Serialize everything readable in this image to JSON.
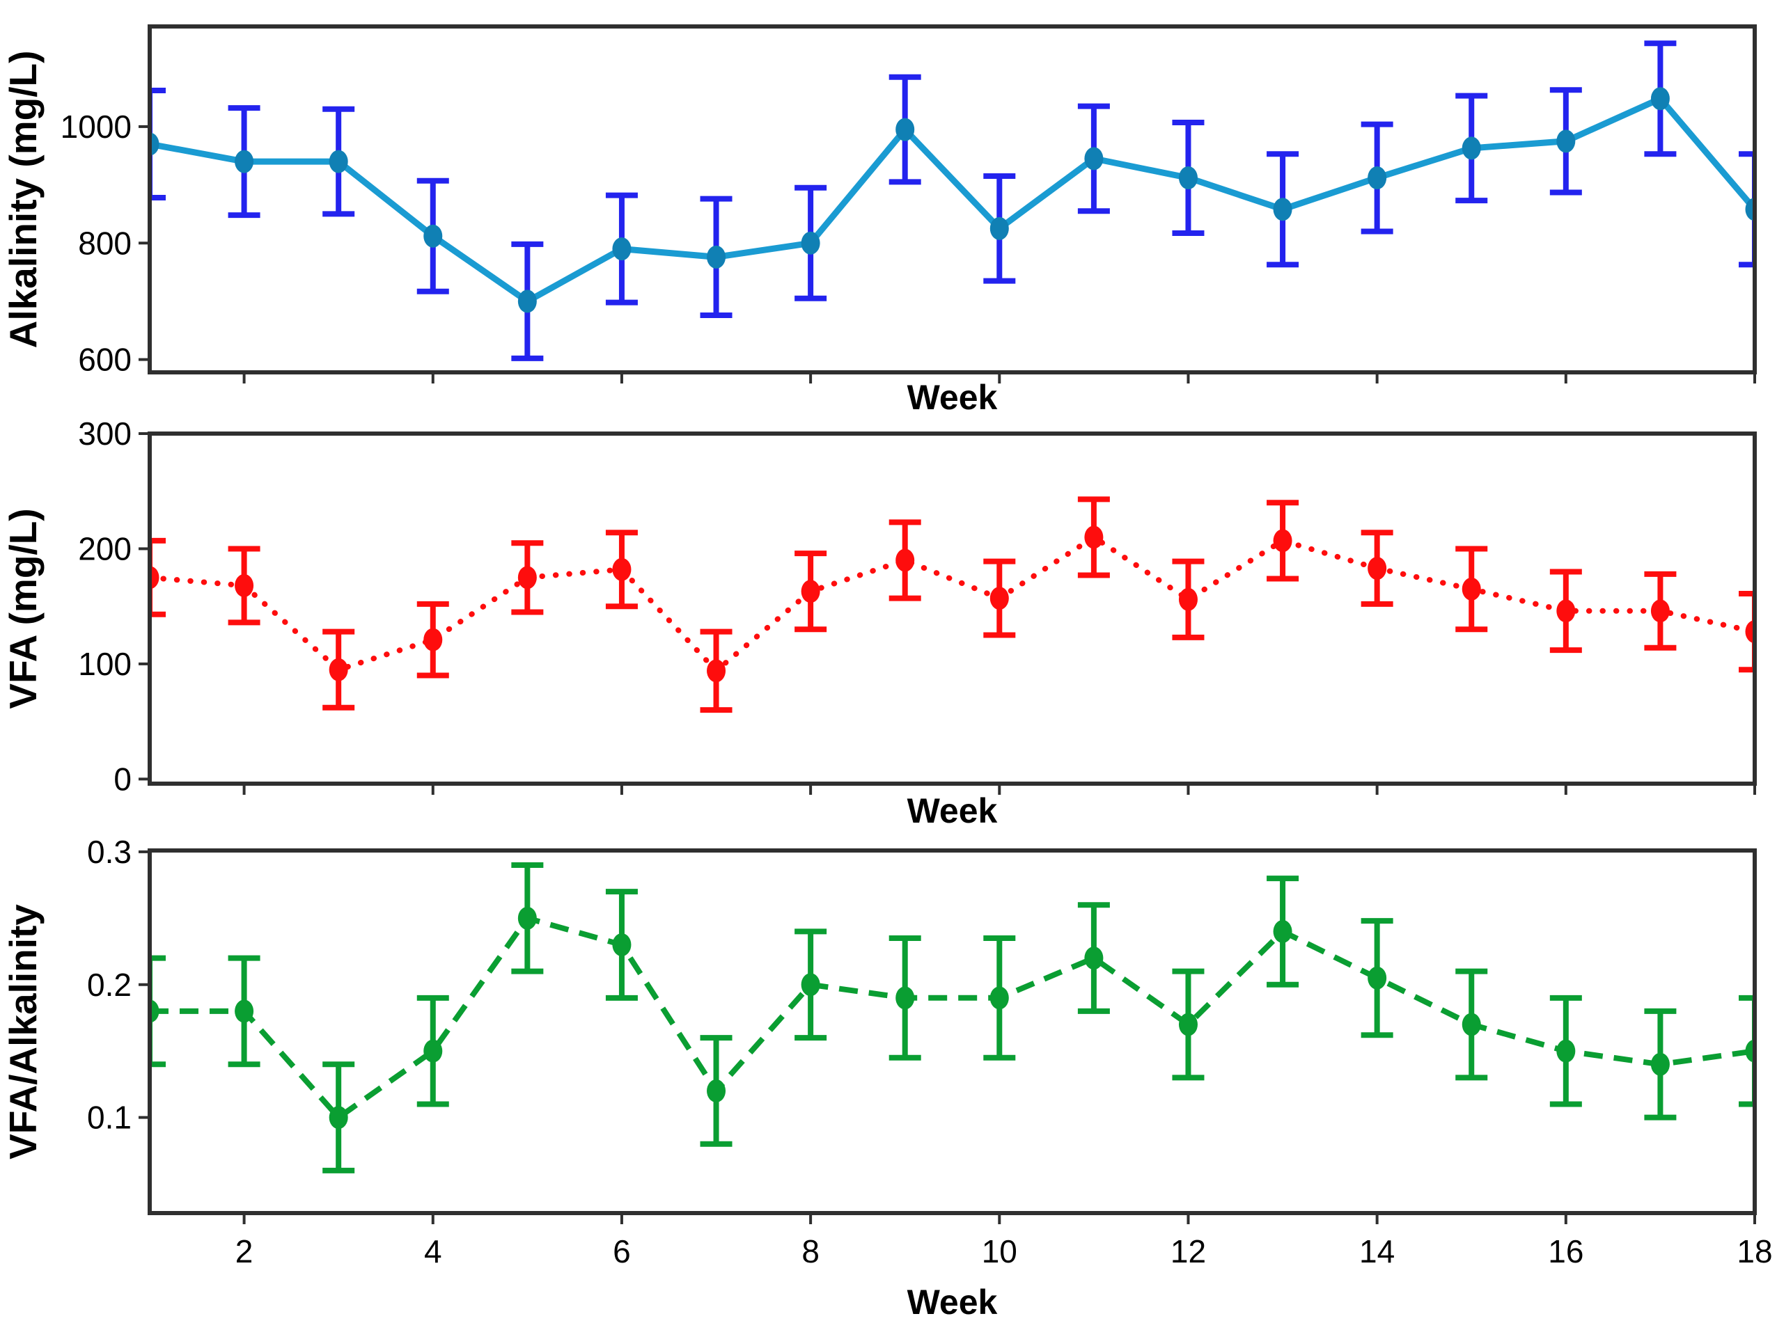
{
  "figure_title": "",
  "x_axis_title": "Week",
  "chart_data": [
    {
      "type": "line",
      "name": "alkalinity",
      "ylabel": "Alkalinity (mg/L)",
      "xlabel": "Week",
      "x": [
        1,
        2,
        3,
        4,
        5,
        6,
        7,
        8,
        9,
        10,
        11,
        12,
        13,
        14,
        15,
        16,
        17,
        18
      ],
      "values": [
        970,
        940,
        940,
        812,
        700,
        790,
        776,
        800,
        995,
        825,
        945,
        912,
        858,
        912,
        963,
        975,
        1048,
        858
      ],
      "errors": [
        92,
        92,
        90,
        95,
        98,
        92,
        100,
        95,
        90,
        90,
        90,
        95,
        95,
        92,
        90,
        88,
        95,
        95
      ],
      "ylim": [
        578,
        1172
      ],
      "yticks": [
        600,
        800,
        1000
      ],
      "ytick_labels": [
        "600",
        "800",
        "1000"
      ],
      "xlim": [
        1,
        18
      ],
      "xticks": [
        2,
        4,
        6,
        8,
        10,
        12,
        14,
        16,
        18
      ],
      "show_xtick_labels": false,
      "grid": false,
      "line_style": "solid",
      "line_color": "#1a9bd2",
      "marker_color": "#1080b4",
      "error_color": "#2323ee"
    },
    {
      "type": "line",
      "name": "vfa",
      "ylabel": "VFA (mg/L)",
      "xlabel": "Week",
      "x": [
        1,
        2,
        3,
        4,
        5,
        6,
        7,
        8,
        9,
        10,
        11,
        12,
        13,
        14,
        15,
        16,
        17,
        18
      ],
      "values": [
        175,
        168,
        95,
        121,
        175,
        182,
        94,
        163,
        190,
        157,
        210,
        156,
        207,
        183,
        165,
        146,
        146,
        128
      ],
      "errors": [
        32,
        32,
        33,
        31,
        30,
        32,
        34,
        33,
        33,
        32,
        33,
        33,
        33,
        31,
        35,
        34,
        32,
        33
      ],
      "ylim": [
        -4,
        300
      ],
      "yticks": [
        0,
        100,
        200,
        300
      ],
      "ytick_labels": [
        "0",
        "100",
        "200",
        "300"
      ],
      "xlim": [
        1,
        18
      ],
      "xticks": [
        2,
        4,
        6,
        8,
        10,
        12,
        14,
        16,
        18
      ],
      "show_xtick_labels": false,
      "grid": false,
      "line_style": "dotted",
      "line_color": "#fe0d0d",
      "marker_color": "#fe0d0d",
      "error_color": "#fe0d0d"
    },
    {
      "type": "line",
      "name": "vfa-alkalinity-ratio",
      "ylabel": "VFA/Alkalinity",
      "xlabel": "Week",
      "x": [
        1,
        2,
        3,
        4,
        5,
        6,
        7,
        8,
        9,
        10,
        11,
        12,
        13,
        14,
        15,
        16,
        17,
        18
      ],
      "values": [
        0.18,
        0.18,
        0.1,
        0.15,
        0.25,
        0.23,
        0.12,
        0.2,
        0.19,
        0.19,
        0.22,
        0.17,
        0.24,
        0.205,
        0.17,
        0.15,
        0.14,
        0.15
      ],
      "errors": [
        0.04,
        0.04,
        0.04,
        0.04,
        0.04,
        0.04,
        0.04,
        0.04,
        0.045,
        0.045,
        0.04,
        0.04,
        0.04,
        0.043,
        0.04,
        0.04,
        0.04,
        0.04
      ],
      "ylim": [
        0.028,
        0.301
      ],
      "yticks": [
        0.1,
        0.2,
        0.3
      ],
      "ytick_labels": [
        "0.1",
        "0.2",
        "0.3"
      ],
      "xlim": [
        1,
        18
      ],
      "xticks": [
        2,
        4,
        6,
        8,
        10,
        12,
        14,
        16,
        18
      ],
      "xtick_labels": [
        "2",
        "4",
        "6",
        "8",
        "10",
        "12",
        "14",
        "16",
        "18"
      ],
      "show_xtick_labels": true,
      "grid": false,
      "line_style": "dashed",
      "line_color": "#0a9e32",
      "marker_color": "#0a9e32",
      "error_color": "#0a9e32"
    }
  ],
  "style": {
    "spine_color": "#2f2f2f",
    "tick_color": "#2f2f2f",
    "background_color": "#ffffff"
  }
}
